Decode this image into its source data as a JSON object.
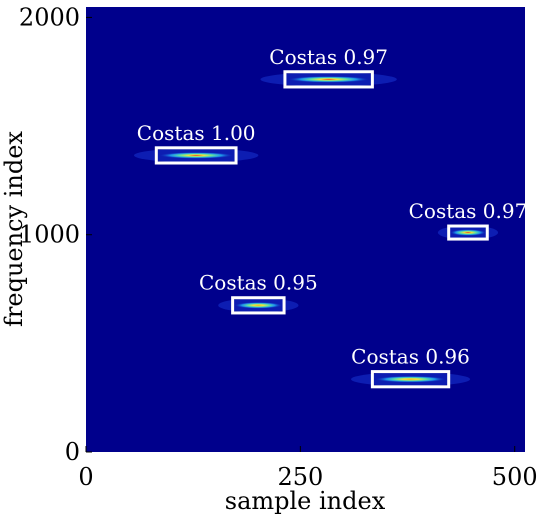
{
  "chart_data": {
    "type": "heatmap",
    "title": "",
    "xlabel": "sample index",
    "ylabel": "frequency index",
    "xlim": [
      0,
      512
    ],
    "ylim": [
      0,
      2048
    ],
    "x_ticks": [
      0,
      250,
      500
    ],
    "y_ticks": [
      0,
      1000,
      2000
    ],
    "x_tick_labels": [
      "0",
      "250",
      "500"
    ],
    "y_tick_labels": [
      "0",
      "1000",
      "2000"
    ],
    "grid": false,
    "background_color": "#00008c",
    "box_color": "#ffffff",
    "detections": [
      {
        "label": "Costas 0.97",
        "x_start": 232,
        "x_end": 334,
        "freq_low": 1680,
        "freq_high": 1750,
        "peak": 0.97
      },
      {
        "label": "Costas 1.00",
        "x_start": 82,
        "x_end": 175,
        "freq_low": 1330,
        "freq_high": 1400,
        "peak": 1.0
      },
      {
        "label": "Costas 0.97",
        "x_start": 423,
        "x_end": 468,
        "freq_low": 980,
        "freq_high": 1040,
        "peak": 0.97
      },
      {
        "label": "Costas 0.95",
        "x_start": 171,
        "x_end": 231,
        "freq_low": 640,
        "freq_high": 710,
        "peak": 0.95
      },
      {
        "label": "Costas 0.96",
        "x_start": 334,
        "x_end": 423,
        "freq_low": 300,
        "freq_high": 370,
        "peak": 0.96
      }
    ]
  }
}
